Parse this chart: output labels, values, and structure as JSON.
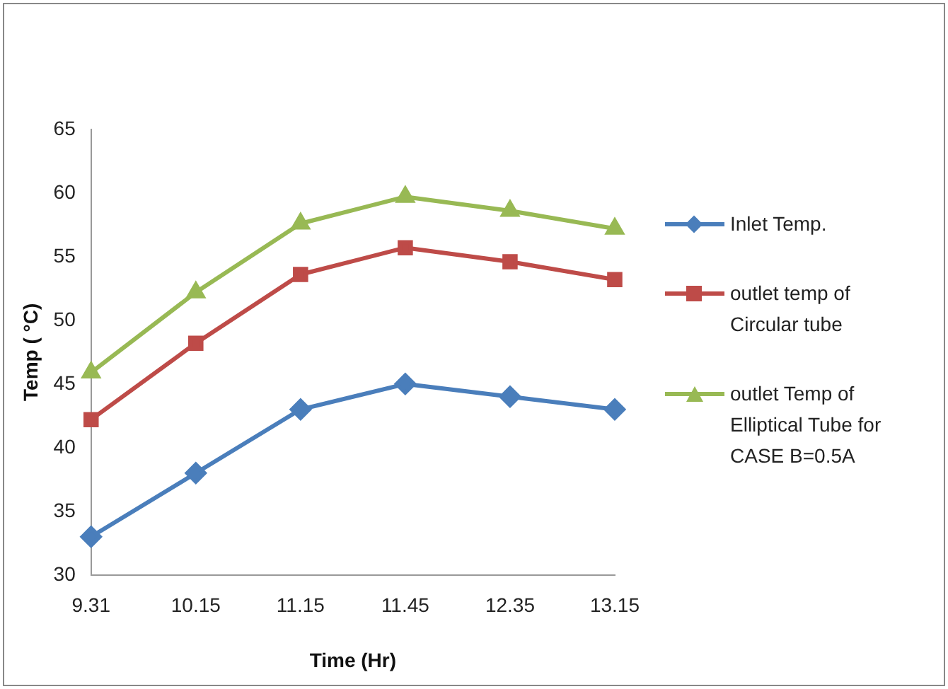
{
  "chart_data": {
    "type": "line",
    "xlabel": "Time (Hr)",
    "ylabel": "Temp ( °C)",
    "categories": [
      "9.31",
      "10.15",
      "11.15",
      "11.45",
      "12.35",
      "13.15"
    ],
    "ylim": [
      30,
      65
    ],
    "yticks": [
      30,
      35,
      40,
      45,
      50,
      55,
      60,
      65
    ],
    "grid": false,
    "legend": "right",
    "series": [
      {
        "name": "Inlet Temp.",
        "color": "#4a7ebb",
        "marker": "diamond",
        "values": [
          33,
          38,
          43,
          45,
          44,
          43
        ]
      },
      {
        "name": "outlet temp of Circular tube",
        "color": "#be4b48",
        "marker": "square",
        "values": [
          42.2,
          48.2,
          53.6,
          55.7,
          54.6,
          53.2
        ]
      },
      {
        "name": "outlet Temp of Elliptical Tube for CASE B=0.5A",
        "color": "#98b954",
        "marker": "triangle",
        "values": [
          45.9,
          52.2,
          57.6,
          59.7,
          58.6,
          57.2
        ]
      }
    ]
  }
}
